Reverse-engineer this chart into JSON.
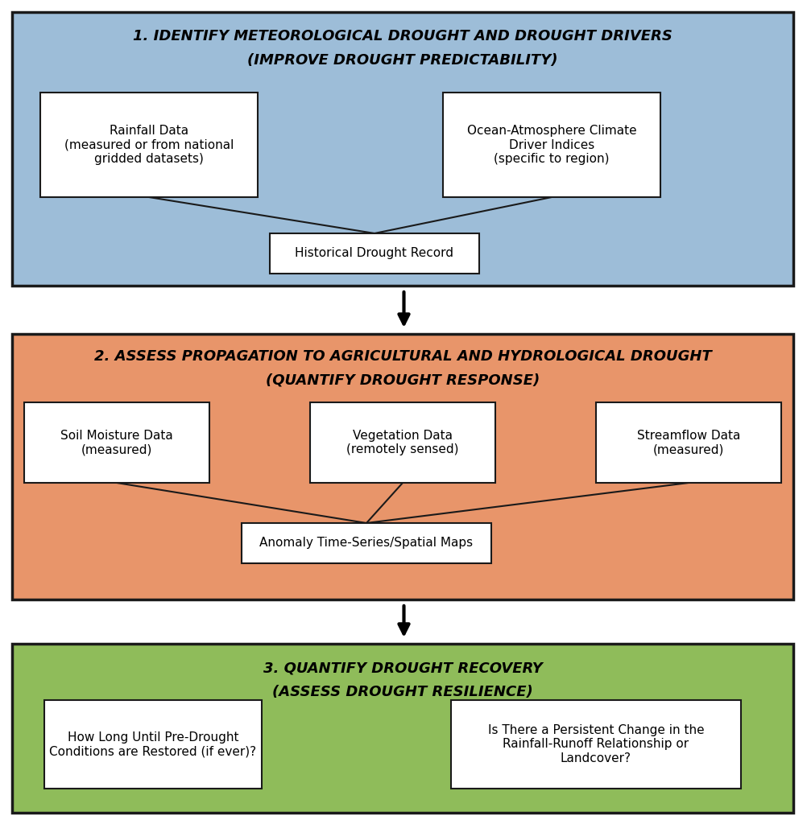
{
  "bg_color": "#ffffff",
  "box1_bg": "#9dbdd8",
  "box2_bg": "#e8956a",
  "box3_bg": "#8fbc5a",
  "inner_box_bg": "#ffffff",
  "border_color": "#1a1a1a",
  "text_color": "#000000",
  "title1_line1": "1. IDENTIFY METEOROLOGICAL DROUGHT AND DROUGHT DRIVERS",
  "title1_line2": "(IMPROVE DROUGHT PREDICTABILITY)",
  "title2_line1": "2. ASSESS PROPAGATION TO AGRICULTURAL AND HYDROLOGICAL DROUGHT",
  "title2_line2": "(QUANTIFY DROUGHT RESPONSE)",
  "title3_line1": "3. QUANTIFY DROUGHT RECOVERY",
  "title3_line2": "(ASSESS DROUGHT RESILIENCE)",
  "box1_left_text": "Rainfall Data\n(measured or from national\ngridded datasets)",
  "box1_right_text": "Ocean-Atmosphere Climate\nDriver Indices\n(specific to region)",
  "box1_bottom_text": "Historical Drought Record",
  "box2_left_text": "Soil Moisture Data\n(measured)",
  "box2_mid_text": "Vegetation Data\n(remotely sensed)",
  "box2_right_text": "Streamflow Data\n(measured)",
  "box2_bottom_text": "Anomaly Time-Series/Spatial Maps",
  "box3_left_text": "How Long Until Pre-Drought\nConditions are Restored (if ever)?",
  "box3_right_text": "Is There a Persistent Change in the\nRainfall-Runoff Relationship or\nLandcover?",
  "fig_width": 10.03,
  "fig_height": 10.24,
  "dpi": 100
}
